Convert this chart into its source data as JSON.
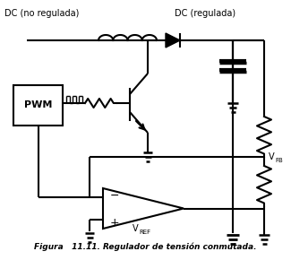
{
  "title": "Figura   11.11. Regulador de tensión conmutada.",
  "label_dc_unreg": "DC (no regulada)",
  "label_dc_reg": "DC (regulada)",
  "label_pwm": "PWM",
  "label_vfb": "V",
  "label_vfb_sub": "FB",
  "label_vref": "V",
  "label_vref_sub": "REF",
  "bg_color": "#ffffff",
  "line_color": "#000000",
  "text_color": "#000000",
  "line_width": 1.5
}
